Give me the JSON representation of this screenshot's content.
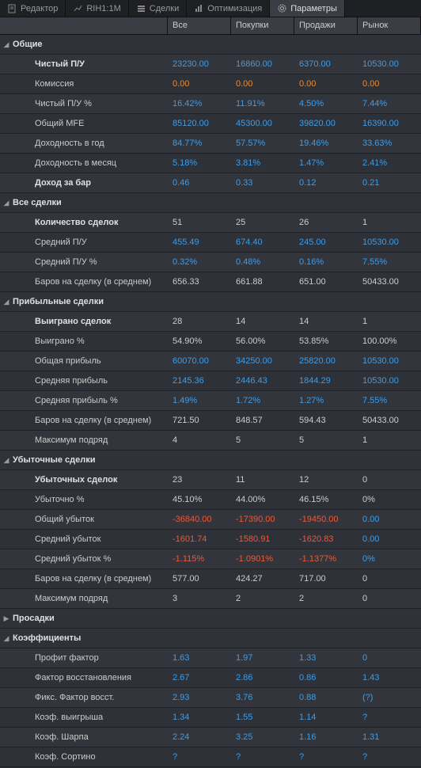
{
  "tabs": [
    {
      "label": "Редактор",
      "icon": "editor"
    },
    {
      "label": "RIH1:1M",
      "icon": "chart"
    },
    {
      "label": "Сделки",
      "icon": "deals"
    },
    {
      "label": "Оптимизация",
      "icon": "optim"
    },
    {
      "label": "Параметры",
      "icon": "gear",
      "active": true
    }
  ],
  "columns": [
    "Все",
    "Покупки",
    "Продажи",
    "Рынок"
  ],
  "sections": [
    {
      "title": "Общие",
      "expanded": true,
      "rows": [
        {
          "label": "Чистый П/У",
          "bold": true,
          "vals": [
            [
              "23230.00",
              "blue"
            ],
            [
              "16860.00",
              "blue"
            ],
            [
              "6370.00",
              "blue"
            ],
            [
              "10530.00",
              "blue"
            ]
          ]
        },
        {
          "label": "Комиссия",
          "vals": [
            [
              "0.00",
              "orange"
            ],
            [
              "0.00",
              "orange"
            ],
            [
              "0.00",
              "orange"
            ],
            [
              "0.00",
              "orange"
            ]
          ]
        },
        {
          "label": "Чистый П/У %",
          "vals": [
            [
              "16.42%",
              "blue"
            ],
            [
              "11.91%",
              "blue"
            ],
            [
              "4.50%",
              "blue"
            ],
            [
              "7.44%",
              "blue"
            ]
          ]
        },
        {
          "label": "Общий MFE",
          "vals": [
            [
              "85120.00",
              "blue"
            ],
            [
              "45300.00",
              "blue"
            ],
            [
              "39820.00",
              "blue"
            ],
            [
              "16390.00",
              "blue"
            ]
          ]
        },
        {
          "label": "Доходность в год",
          "vals": [
            [
              "84.77%",
              "blue"
            ],
            [
              "57.57%",
              "blue"
            ],
            [
              "19.46%",
              "blue"
            ],
            [
              "33.63%",
              "blue"
            ]
          ]
        },
        {
          "label": "Доходность в месяц",
          "vals": [
            [
              "5.18%",
              "blue"
            ],
            [
              "3.81%",
              "blue"
            ],
            [
              "1.47%",
              "blue"
            ],
            [
              "2.41%",
              "blue"
            ]
          ]
        },
        {
          "label": "Доход за бар",
          "bold": true,
          "vals": [
            [
              "0.46",
              "blue"
            ],
            [
              "0.33",
              "blue"
            ],
            [
              "0.12",
              "blue"
            ],
            [
              "0.21",
              "blue"
            ]
          ]
        }
      ]
    },
    {
      "title": "Все сделки",
      "expanded": true,
      "rows": [
        {
          "label": "Количество сделок",
          "bold": true,
          "vals": [
            [
              "51",
              "plain"
            ],
            [
              "25",
              "plain"
            ],
            [
              "26",
              "plain"
            ],
            [
              "1",
              "plain"
            ]
          ]
        },
        {
          "label": "Средний П/У",
          "vals": [
            [
              "455.49",
              "blue"
            ],
            [
              "674.40",
              "blue"
            ],
            [
              "245.00",
              "blue"
            ],
            [
              "10530.00",
              "blue"
            ]
          ]
        },
        {
          "label": "Средний П/У %",
          "vals": [
            [
              "0.32%",
              "blue"
            ],
            [
              "0.48%",
              "blue"
            ],
            [
              "0.16%",
              "blue"
            ],
            [
              "7.55%",
              "blue"
            ]
          ]
        },
        {
          "label": "Баров на сделку (в среднем)",
          "vals": [
            [
              "656.33",
              "plain"
            ],
            [
              "661.88",
              "plain"
            ],
            [
              "651.00",
              "plain"
            ],
            [
              "50433.00",
              "plain"
            ]
          ]
        }
      ]
    },
    {
      "title": "Прибыльные сделки",
      "expanded": true,
      "rows": [
        {
          "label": "Выиграно сделок",
          "bold": true,
          "vals": [
            [
              "28",
              "plain"
            ],
            [
              "14",
              "plain"
            ],
            [
              "14",
              "plain"
            ],
            [
              "1",
              "plain"
            ]
          ]
        },
        {
          "label": "Выиграно %",
          "vals": [
            [
              "54.90%",
              "plain"
            ],
            [
              "56.00%",
              "plain"
            ],
            [
              "53.85%",
              "plain"
            ],
            [
              "100.00%",
              "plain"
            ]
          ]
        },
        {
          "label": "Общая прибыль",
          "vals": [
            [
              "60070.00",
              "blue"
            ],
            [
              "34250.00",
              "blue"
            ],
            [
              "25820.00",
              "blue"
            ],
            [
              "10530.00",
              "blue"
            ]
          ]
        },
        {
          "label": "Средняя прибыль",
          "vals": [
            [
              "2145.36",
              "blue"
            ],
            [
              "2446.43",
              "blue"
            ],
            [
              "1844.29",
              "blue"
            ],
            [
              "10530.00",
              "blue"
            ]
          ]
        },
        {
          "label": "Средняя прибыль %",
          "vals": [
            [
              "1.49%",
              "blue"
            ],
            [
              "1.72%",
              "blue"
            ],
            [
              "1.27%",
              "blue"
            ],
            [
              "7.55%",
              "blue"
            ]
          ]
        },
        {
          "label": "Баров на сделку (в среднем)",
          "vals": [
            [
              "721.50",
              "plain"
            ],
            [
              "848.57",
              "plain"
            ],
            [
              "594.43",
              "plain"
            ],
            [
              "50433.00",
              "plain"
            ]
          ]
        },
        {
          "label": "Максимум подряд",
          "vals": [
            [
              "4",
              "plain"
            ],
            [
              "5",
              "plain"
            ],
            [
              "5",
              "plain"
            ],
            [
              "1",
              "plain"
            ]
          ]
        }
      ]
    },
    {
      "title": "Убыточные сделки",
      "expanded": true,
      "rows": [
        {
          "label": "Убыточных сделок",
          "bold": true,
          "vals": [
            [
              "23",
              "plain"
            ],
            [
              "11",
              "plain"
            ],
            [
              "12",
              "plain"
            ],
            [
              "0",
              "plain"
            ]
          ]
        },
        {
          "label": "Убыточно %",
          "vals": [
            [
              "45.10%",
              "plain"
            ],
            [
              "44.00%",
              "plain"
            ],
            [
              "46.15%",
              "plain"
            ],
            [
              "0%",
              "plain"
            ]
          ]
        },
        {
          "label": "Общий убыток",
          "vals": [
            [
              "-36840.00",
              "red"
            ],
            [
              "-17390.00",
              "red"
            ],
            [
              "-19450.00",
              "red"
            ],
            [
              "0.00",
              "blue"
            ]
          ]
        },
        {
          "label": "Средний убыток",
          "vals": [
            [
              "-1601.74",
              "red"
            ],
            [
              "-1580.91",
              "red"
            ],
            [
              "-1620.83",
              "red"
            ],
            [
              "0.00",
              "blue"
            ]
          ]
        },
        {
          "label": "Средний убыток %",
          "vals": [
            [
              "-1.115%",
              "red"
            ],
            [
              "-1.0901%",
              "red"
            ],
            [
              "-1.1377%",
              "red"
            ],
            [
              "0%",
              "blue"
            ]
          ]
        },
        {
          "label": "Баров на сделку (в среднем)",
          "vals": [
            [
              "577.00",
              "plain"
            ],
            [
              "424.27",
              "plain"
            ],
            [
              "717.00",
              "plain"
            ],
            [
              "0",
              "plain"
            ]
          ]
        },
        {
          "label": "Максимум подряд",
          "vals": [
            [
              "3",
              "plain"
            ],
            [
              "2",
              "plain"
            ],
            [
              "2",
              "plain"
            ],
            [
              "0",
              "plain"
            ]
          ]
        }
      ]
    },
    {
      "title": "Просадки",
      "expanded": false,
      "rows": []
    },
    {
      "title": "Коэффициенты",
      "expanded": true,
      "rows": [
        {
          "label": "Профит фактор",
          "vals": [
            [
              "1.63",
              "blue"
            ],
            [
              "1.97",
              "blue"
            ],
            [
              "1.33",
              "blue"
            ],
            [
              "0",
              "blue"
            ]
          ]
        },
        {
          "label": "Фактор восстановления",
          "vals": [
            [
              "2.67",
              "blue"
            ],
            [
              "2.86",
              "blue"
            ],
            [
              "0.86",
              "blue"
            ],
            [
              "1.43",
              "blue"
            ]
          ]
        },
        {
          "label": "Фикс. Фактор восст.",
          "vals": [
            [
              "2.93",
              "blue"
            ],
            [
              "3.76",
              "blue"
            ],
            [
              "0.88",
              "blue"
            ],
            [
              "(?)",
              "blue"
            ]
          ]
        },
        {
          "label": "Коэф. выигрыша",
          "vals": [
            [
              "1.34",
              "blue"
            ],
            [
              "1.55",
              "blue"
            ],
            [
              "1.14",
              "blue"
            ],
            [
              "?",
              "blue"
            ]
          ]
        },
        {
          "label": "Коэф. Шарпа",
          "vals": [
            [
              "2.24",
              "blue"
            ],
            [
              "3.25",
              "blue"
            ],
            [
              "1.16",
              "blue"
            ],
            [
              "1.31",
              "blue"
            ]
          ]
        },
        {
          "label": "Коэф. Сортино",
          "vals": [
            [
              "?",
              "blue"
            ],
            [
              "?",
              "blue"
            ],
            [
              "?",
              "blue"
            ],
            [
              "?",
              "blue"
            ]
          ]
        }
      ]
    }
  ]
}
